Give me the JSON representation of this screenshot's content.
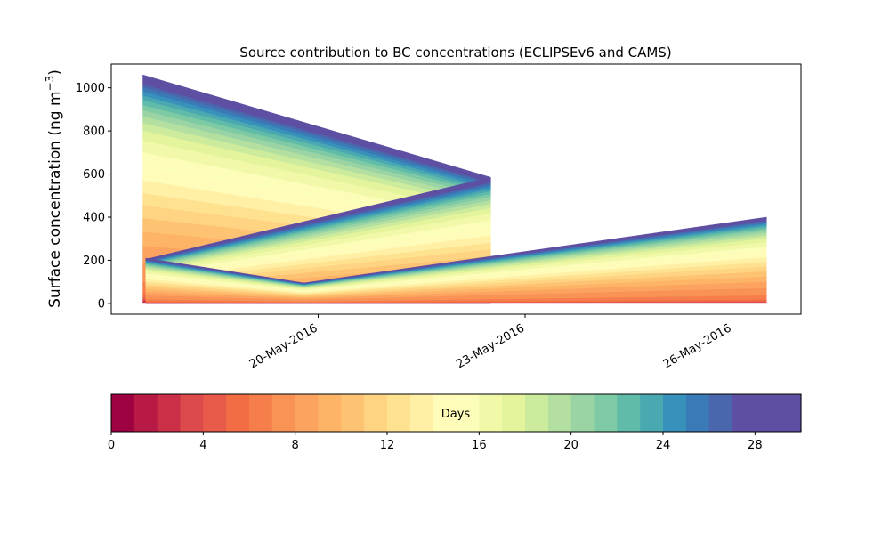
{
  "chart_data": {
    "type": "area",
    "title": "Source contribution to BC concentrations (ECLIPSEv6 and CAMS)",
    "ylabel": "Surface concentration (ng m⁻³)",
    "ylabel_prefix": "Surface concentration (ng m",
    "ylabel_exp": "−3",
    "ylabel_suffix": ")",
    "xlabel": "",
    "ylim": [
      -50,
      1110
    ],
    "xlim": [
      "2016-05-17T00:00",
      "2016-05-27T00:00"
    ],
    "yticks": [
      0,
      200,
      400,
      600,
      800,
      1000
    ],
    "xticks": [
      {
        "date": "2016-05-20",
        "label": "20-May-2016"
      },
      {
        "date": "2016-05-23",
        "label": "23-May-2016"
      },
      {
        "date": "2016-05-26",
        "label": "26-May-2016"
      }
    ],
    "stacked": true,
    "series_count": 30,
    "series_weights": [
      0.08,
      0.12,
      0.15,
      0.2,
      0.28,
      0.6,
      1.4,
      2.6,
      2.2,
      1.9,
      1.8,
      1.7,
      1.6,
      1.7,
      1.8,
      1.9,
      1.6,
      1.3,
      1.0,
      0.9,
      0.8,
      0.7,
      0.65,
      0.6,
      0.55,
      0.5,
      0.45,
      0.42,
      0.4,
      0.4
    ],
    "segments": [
      {
        "x": [
          "2016-05-17T11:00",
          "2016-05-22T12:00"
        ],
        "totals": [
          1060,
          585
        ]
      },
      {
        "x": [
          "2016-05-17T12:00",
          "2016-05-22T12:00"
        ],
        "totals": [
          205,
          585
        ]
      },
      {
        "x": [
          "2016-05-17T12:00",
          "2016-05-19T19:00"
        ],
        "totals": [
          210,
          95
        ]
      },
      {
        "x": [
          "2016-05-19T19:00",
          "2016-05-26T12:00"
        ],
        "totals": [
          95,
          400
        ]
      }
    ],
    "colorbar": {
      "label": "Days",
      "min": 0,
      "max": 30,
      "ticks": [
        0,
        4,
        8,
        12,
        16,
        20,
        24,
        28
      ],
      "colors": [
        "#9e0142",
        "#b71b45",
        "#cc2f48",
        "#dc4a4c",
        "#e85a49",
        "#f26d43",
        "#f67e4b",
        "#f99255",
        "#fba35f",
        "#fdb466",
        "#fdc373",
        "#fed483",
        "#fee290",
        "#fff0a6",
        "#fffbb8",
        "#fbfdb8",
        "#f1f9a9",
        "#e3f49c",
        "#cdeb9d",
        "#b3e0a1",
        "#9ad4a4",
        "#7dcaa4",
        "#60bba8",
        "#4aa8b0",
        "#3891bb",
        "#3a7bb7",
        "#4a67ae",
        "#5e4fa2",
        "#5e4fa2",
        "#5e4fa2"
      ]
    }
  }
}
